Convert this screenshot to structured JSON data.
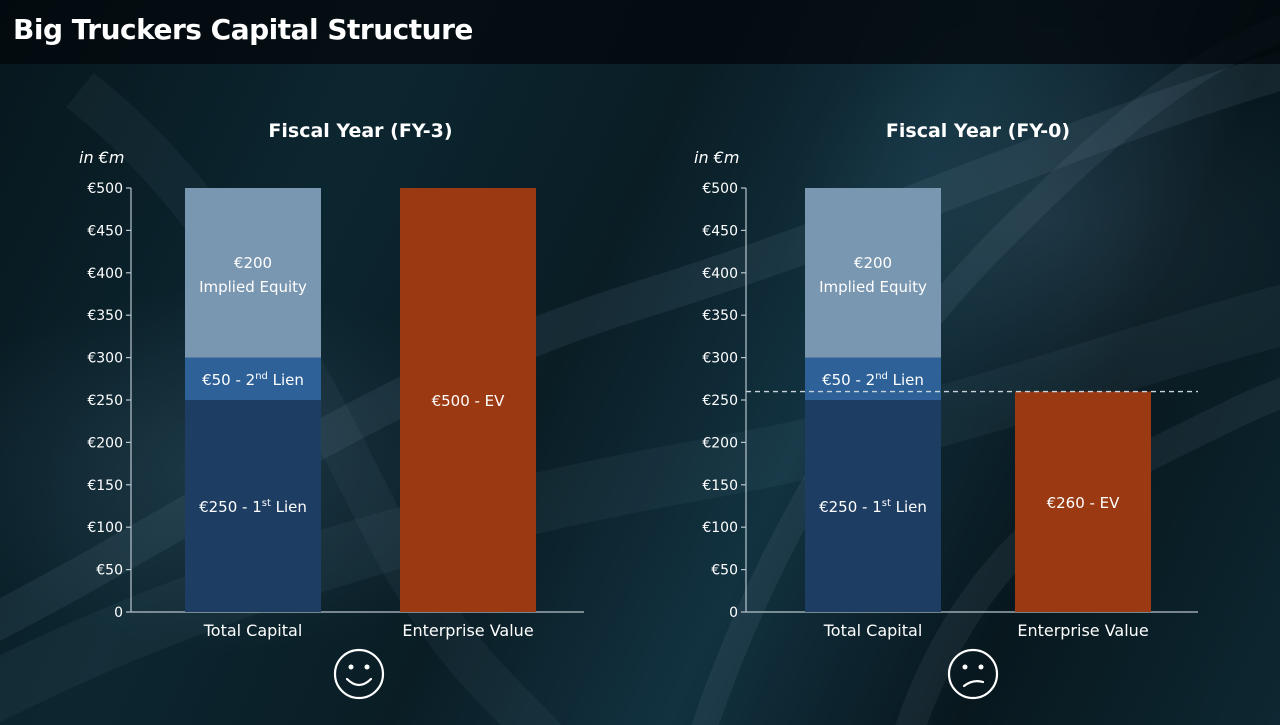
{
  "page": {
    "title": "Big Truckers Capital Structure"
  },
  "colors": {
    "first_lien": "#1e3d63",
    "second_lien": "#2d6198",
    "equity": "#7a97b1",
    "ev": "#9b3a12",
    "axis": "#b8c4cc",
    "dash": "#c9d3da"
  },
  "chart_data": [
    {
      "type": "bar",
      "title": "Fiscal Year (FY-3)",
      "unit_label": "in €m",
      "categories": [
        "Total Capital",
        "Enterprise Value"
      ],
      "ylim": [
        0,
        500
      ],
      "yticks": [
        0,
        50,
        100,
        150,
        200,
        250,
        300,
        350,
        400,
        450,
        500
      ],
      "ytick_labels": [
        "0",
        "€50",
        "€100",
        "€150",
        "€200",
        "€250",
        "€300",
        "€350",
        "€400",
        "€450",
        "€500"
      ],
      "stacks": [
        {
          "category": "Total Capital",
          "segments": [
            {
              "key": "first_lien",
              "value": 250,
              "label": "€250 - 1",
              "sup": "st",
              "suffix": " Lien"
            },
            {
              "key": "second_lien",
              "value": 50,
              "label": "€50 - 2",
              "sup": "nd",
              "suffix": " Lien"
            },
            {
              "key": "equity",
              "value": 200,
              "label": "€200",
              "label2": "Implied Equity"
            }
          ]
        },
        {
          "category": "Enterprise Value",
          "segments": [
            {
              "key": "ev",
              "value": 500,
              "label": "€500 - EV"
            }
          ]
        }
      ],
      "reference_line": null,
      "face": "smile-icon"
    },
    {
      "type": "bar",
      "title": "Fiscal Year (FY-0)",
      "unit_label": "in €m",
      "categories": [
        "Total Capital",
        "Enterprise Value"
      ],
      "ylim": [
        0,
        500
      ],
      "yticks": [
        0,
        50,
        100,
        150,
        200,
        250,
        300,
        350,
        400,
        450,
        500
      ],
      "ytick_labels": [
        "0",
        "€50",
        "€100",
        "€150",
        "€200",
        "€250",
        "€300",
        "€350",
        "€400",
        "€450",
        "€500"
      ],
      "stacks": [
        {
          "category": "Total Capital",
          "segments": [
            {
              "key": "first_lien",
              "value": 250,
              "label": "€250 - 1",
              "sup": "st",
              "suffix": " Lien"
            },
            {
              "key": "second_lien",
              "value": 50,
              "label": "€50 - 2",
              "sup": "nd",
              "suffix": " Lien"
            },
            {
              "key": "equity",
              "value": 200,
              "label": "€200",
              "label2": "Implied Equity"
            }
          ]
        },
        {
          "category": "Enterprise Value",
          "segments": [
            {
              "key": "ev",
              "value": 260,
              "label": "€260 - EV"
            }
          ]
        }
      ],
      "reference_line": 260,
      "face": "frown-icon"
    }
  ]
}
